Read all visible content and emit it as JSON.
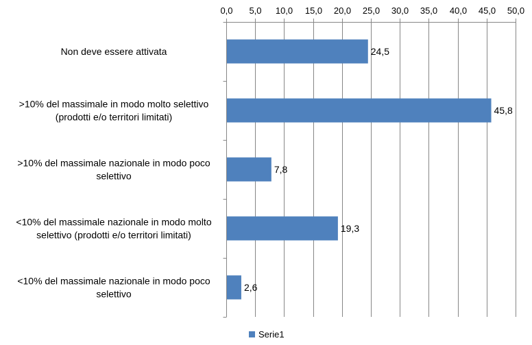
{
  "colors": {
    "bar": "#4F81BD",
    "grid": "#868686",
    "axis": "#868686",
    "text": "#000000",
    "background": "#FFFFFF"
  },
  "chart_data": {
    "type": "bar",
    "orientation": "horizontal",
    "x_axis_position": "top",
    "title": "",
    "xlabel": "",
    "ylabel": "",
    "xlim": [
      0,
      50
    ],
    "x_ticks": [
      0,
      5,
      10,
      15,
      20,
      25,
      30,
      35,
      40,
      45,
      50
    ],
    "x_tick_labels": [
      "0,0",
      "5,0",
      "10,0",
      "15,0",
      "20,0",
      "25,0",
      "30,0",
      "35,0",
      "40,0",
      "45,0",
      "50,0"
    ],
    "grid": true,
    "legend": {
      "position": "bottom",
      "entries": [
        "Serie1"
      ]
    },
    "categories": [
      "Non deve essere attivata",
      ">10% del massimale in modo molto selettivo (prodotti e/o territori limitati)",
      ">10% del massimale nazionale in modo poco selettivo",
      "<10% del massimale nazionale in modo molto selettivo (prodotti e/o territori limitati)",
      "<10% del massimale nazionale in modo poco selettivo"
    ],
    "category_label_lines": [
      [
        "Non deve essere attivata"
      ],
      [
        ">10% del massimale in modo molto selettivo",
        "(prodotti e/o territori limitati)"
      ],
      [
        ">10% del massimale nazionale in modo poco",
        "selettivo"
      ],
      [
        "<10% del massimale nazionale in modo molto",
        "selettivo (prodotti e/o territori limitati)"
      ],
      [
        "<10% del massimale nazionale in modo poco",
        "selettivo"
      ]
    ],
    "series": [
      {
        "name": "Serie1",
        "values": [
          24.5,
          45.8,
          7.8,
          19.3,
          2.6
        ],
        "data_labels": [
          "24,5",
          "45,8",
          "7,8",
          "19,3",
          "2,6"
        ]
      }
    ]
  }
}
